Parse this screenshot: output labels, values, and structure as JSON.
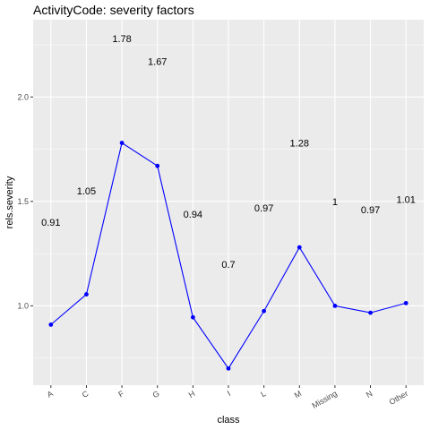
{
  "chart_data": {
    "type": "line",
    "title": "ActivityCode: severity factors",
    "xlabel": "class",
    "ylabel": "rels.severity",
    "categories": [
      "A",
      "C",
      "F",
      "G",
      "H",
      "I",
      "L",
      "M",
      "Missing",
      "N",
      "Other"
    ],
    "values": [
      0.91,
      1.055,
      1.78,
      1.67,
      0.945,
      0.7,
      0.975,
      1.28,
      1.0,
      0.967,
      1.013
    ],
    "data_labels": [
      "0.91",
      "1.05",
      "1.78",
      "1.67",
      "0.94",
      "0.7",
      "0.97",
      "1.28",
      "1",
      "0.97",
      "1.01"
    ],
    "label_y_values": [
      1.4,
      1.55,
      2.28,
      2.17,
      1.44,
      1.2,
      1.47,
      1.78,
      1.5,
      1.46,
      1.51
    ],
    "yticks": [
      1.0,
      1.5,
      2.0
    ],
    "ytick_labels": [
      "1.0",
      "1.5",
      "2.0"
    ],
    "ylim": [
      0.62,
      2.37
    ],
    "grid": true,
    "line_color": "#0000ff",
    "point_color": "#0000ff",
    "panel_color": "#ebebeb",
    "grid_color": "#ffffff"
  }
}
